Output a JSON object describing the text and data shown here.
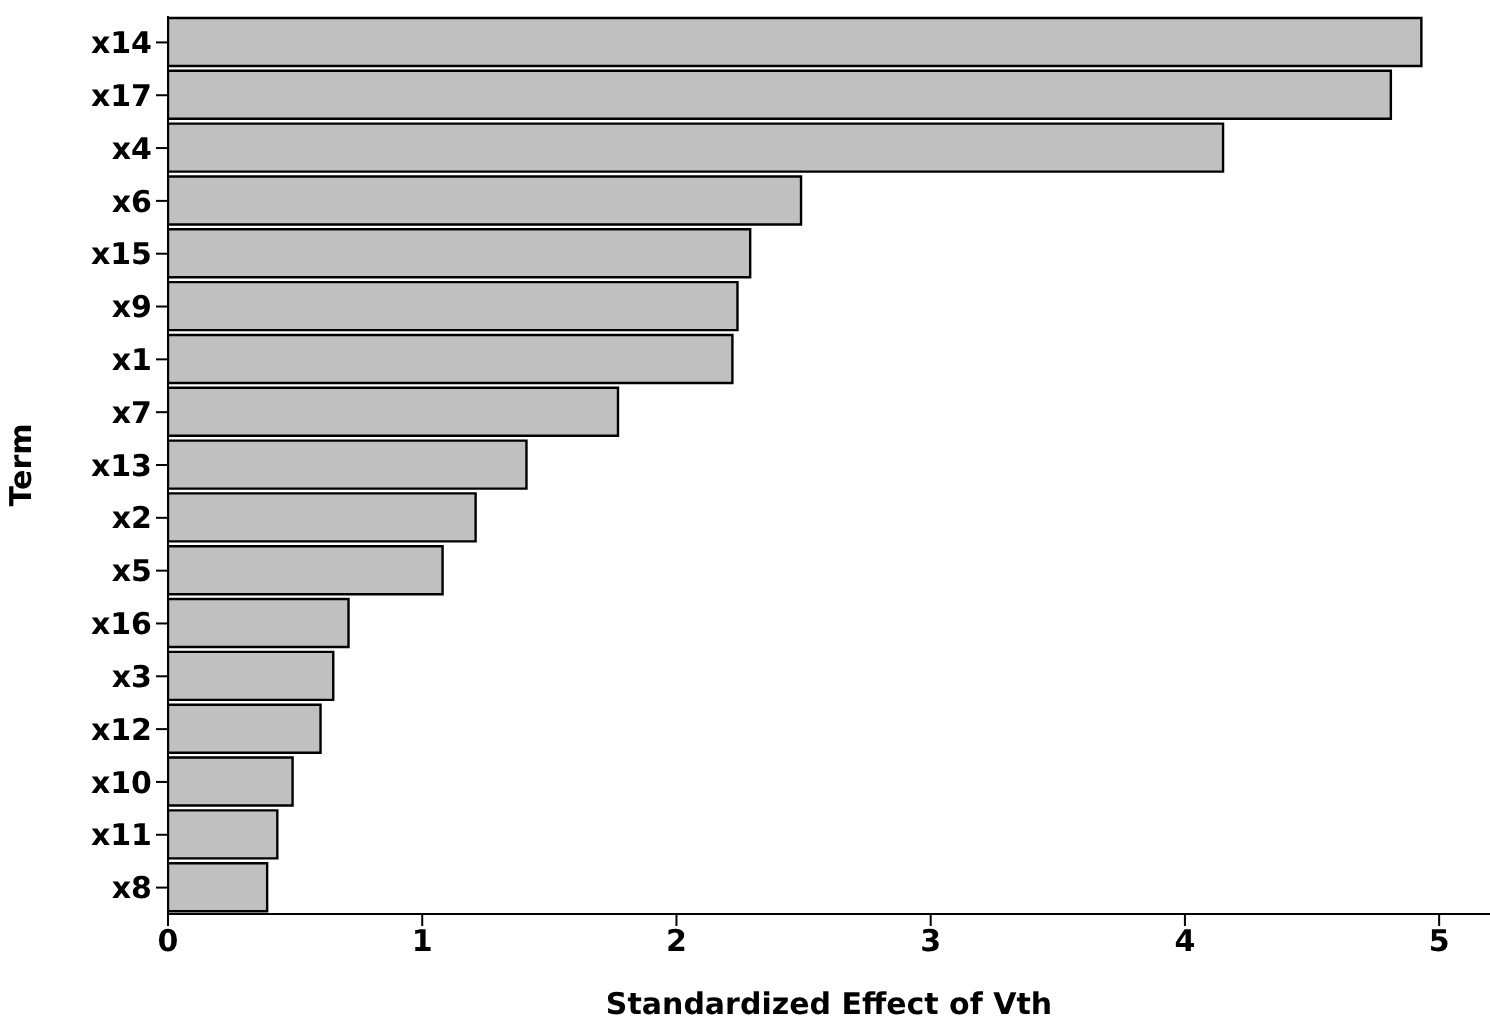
{
  "chart_data": {
    "type": "bar",
    "orientation": "horizontal",
    "xlabel": "Standardized Effect of Vth",
    "ylabel": "Term",
    "categories": [
      "x14",
      "x17",
      "x4",
      "x6",
      "x15",
      "x9",
      "x1",
      "x7",
      "x13",
      "x2",
      "x5",
      "x16",
      "x3",
      "x12",
      "x10",
      "x11",
      "x8"
    ],
    "values": [
      4.93,
      4.81,
      4.15,
      2.49,
      2.29,
      2.24,
      2.22,
      1.77,
      1.41,
      1.21,
      1.08,
      0.71,
      0.65,
      0.6,
      0.49,
      0.43,
      0.39
    ],
    "color": "#c0c0c0",
    "xlim": [
      0,
      5.2
    ],
    "xticks": [
      0,
      1,
      2,
      3,
      4,
      5
    ]
  }
}
